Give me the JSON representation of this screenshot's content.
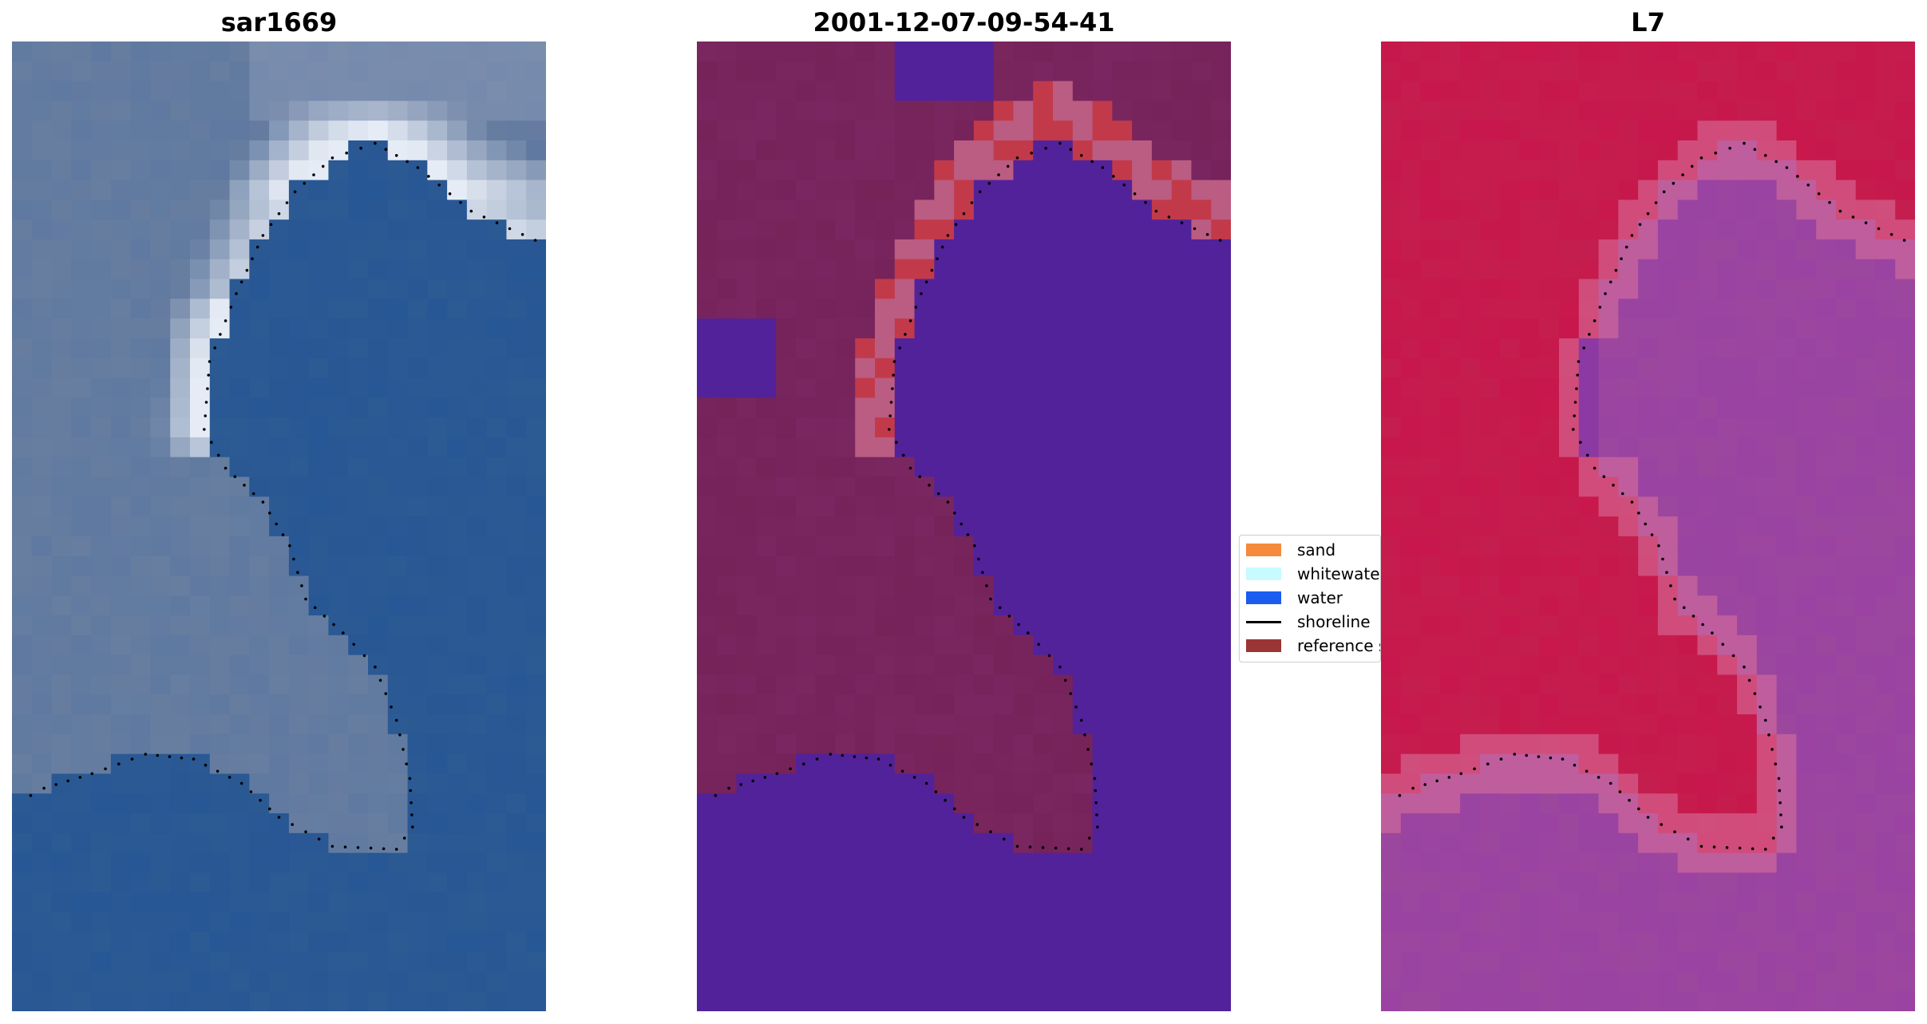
{
  "panels": [
    {
      "title": "sar1669"
    },
    {
      "title": "2001-12-07-09-54-41"
    },
    {
      "title": "L7"
    }
  ],
  "legend": {
    "items": [
      {
        "label": "sand",
        "color": "#f58a3c"
      },
      {
        "label": "whitewater",
        "color": "#c8fbff"
      },
      {
        "label": "water",
        "color": "#1a5cf0"
      },
      {
        "label": "shoreline",
        "color": "#000000"
      },
      {
        "label": "reference shoreline",
        "color": "#9b3535"
      }
    ]
  },
  "colors": {
    "rgb_water": "#2c5a93",
    "rgb_land": "#5f79a0",
    "rgb_surf": "#e6ecf5",
    "class_water": "#52229a",
    "class_land": "#7a2660",
    "class_sand": "#c23a4a",
    "class_pink": "#b86a9a",
    "l7_land": "#c8174c",
    "l7_water": "#9c479e",
    "l7_edge": "#d76e9a"
  }
}
